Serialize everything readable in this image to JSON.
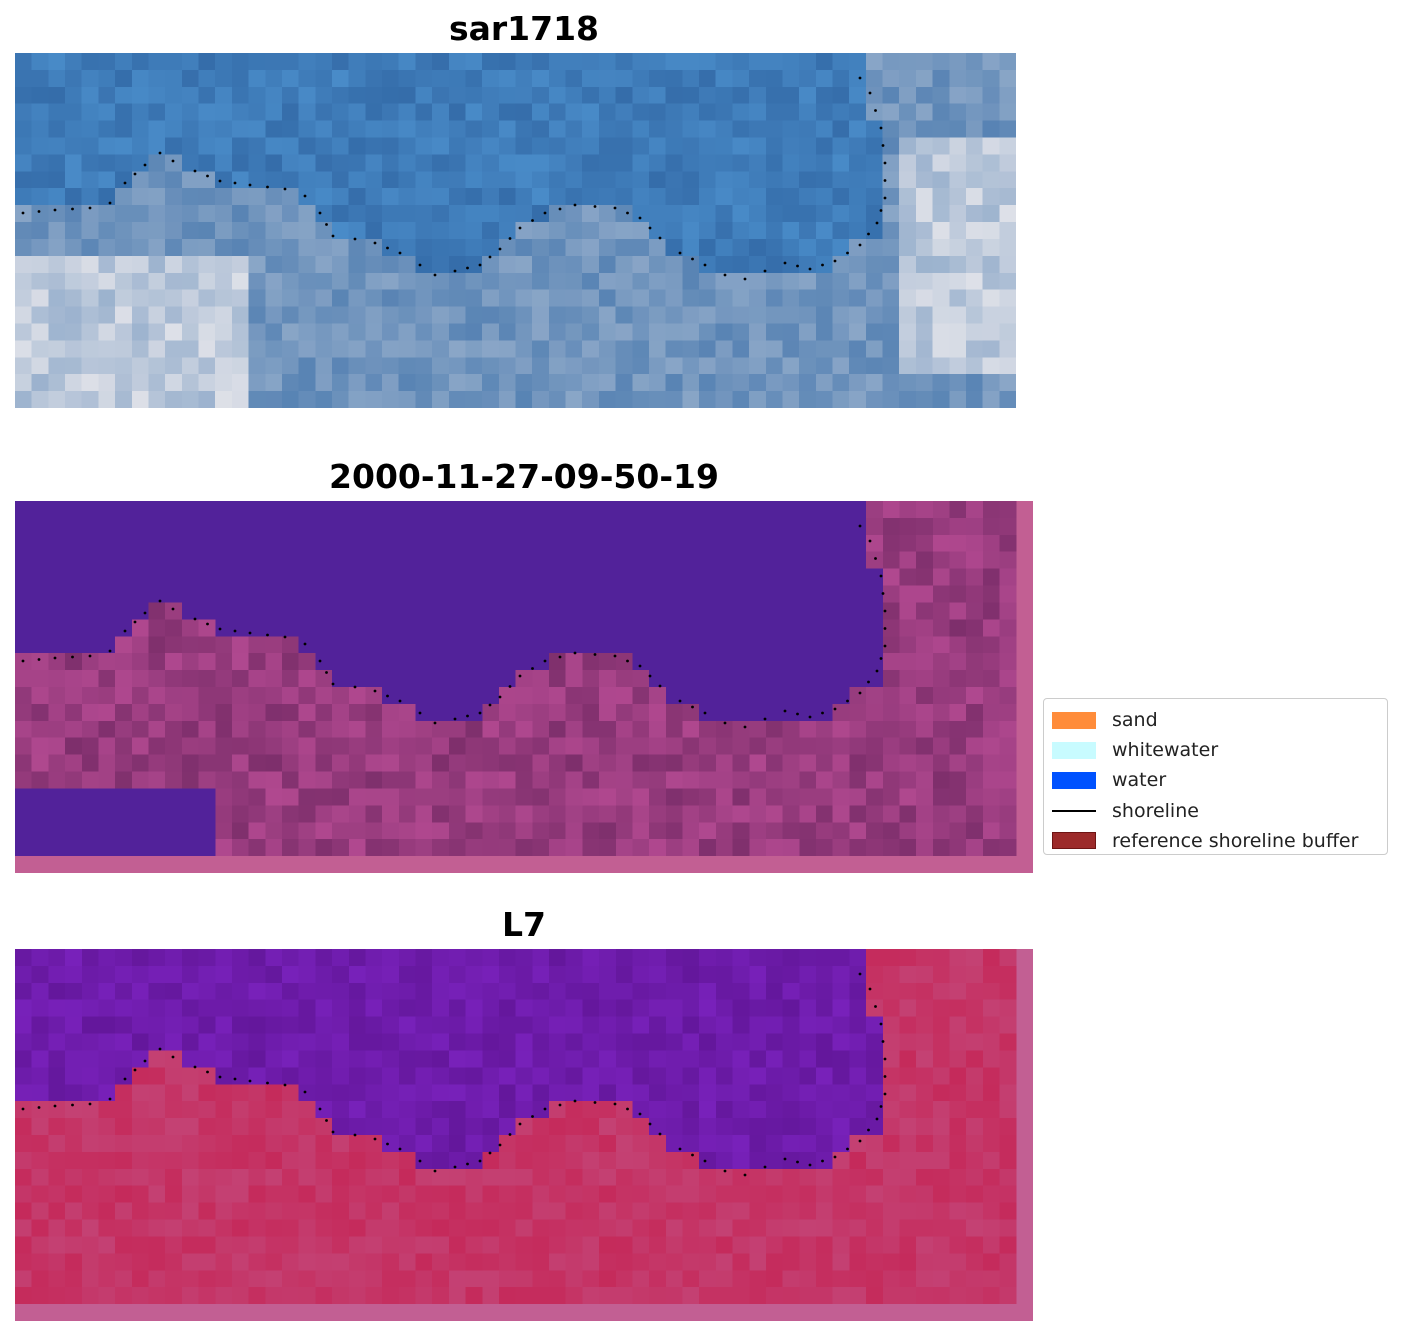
{
  "panels": [
    {
      "title": "sar1718",
      "style": "rgb"
    },
    {
      "title": "2000-11-27-09-50-19",
      "style": "classified"
    },
    {
      "title": "L7",
      "style": "index"
    }
  ],
  "legend": {
    "items": [
      {
        "label": "sand",
        "type": "patch",
        "color": "#ff8c3a",
        "border": "#ff8c3a"
      },
      {
        "label": "whitewater",
        "type": "patch",
        "color": "#c8fbff",
        "border": "#c8fbff"
      },
      {
        "label": "water",
        "type": "patch",
        "color": "#0052ff",
        "border": "#0052ff"
      },
      {
        "label": "shoreline",
        "type": "line",
        "color": "#000000"
      },
      {
        "label": "reference shoreline buffer",
        "type": "patch",
        "color": "#9c2a2a",
        "border": "#6e1414"
      }
    ]
  },
  "colors": {
    "water_class": "#52229a",
    "land_class": "#7e2f6c",
    "buffer": "#c25f93",
    "index_water": "#6e17a6",
    "index_land": "#c61d4d",
    "rgb_water": "#3f72aa"
  }
}
